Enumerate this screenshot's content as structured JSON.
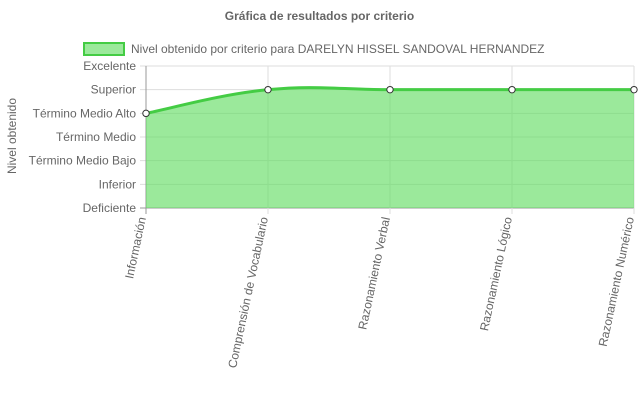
{
  "chart_data": {
    "type": "line",
    "title": "Gráfica de resultados por criterio",
    "ylabel": "Nivel obtenido",
    "xlabel": "",
    "categories": [
      "Información",
      "Comprensión de Vocabulario",
      "Razonamiento Verbal",
      "Razonamiento Lógico",
      "Razonamiento Numérico"
    ],
    "y_levels": [
      "Deficiente",
      "Inferior",
      "Término Medio Bajo",
      "Término Medio",
      "Término Medio Alto",
      "Superior",
      "Excelente"
    ],
    "series": [
      {
        "name": "Nivel obtenido por criterio para DARELYN HISSEL SANDOVAL HERNANDEZ",
        "values": [
          "Término Medio Alto",
          "Superior",
          "Superior",
          "Superior",
          "Superior"
        ],
        "level_index": [
          4,
          5,
          5,
          5,
          5
        ]
      }
    ],
    "fill": true,
    "smoothed": true,
    "grid": true,
    "legend_position": "top",
    "colors": {
      "line": "#44cc44",
      "fill": "rgba(102,221,102,0.65)",
      "grid": "#dddddd",
      "axis": "#999999"
    }
  }
}
